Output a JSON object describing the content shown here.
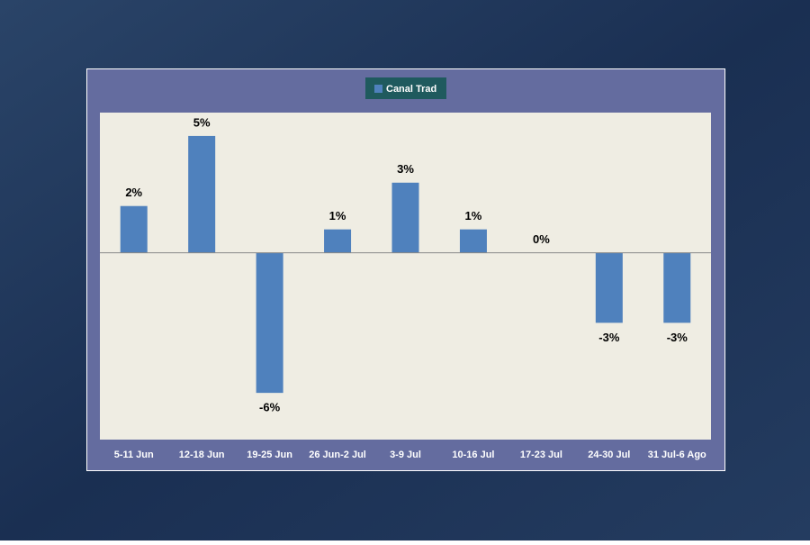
{
  "chart_data": {
    "type": "bar",
    "categories": [
      "5-11 Jun",
      "12-18 Jun",
      "19-25 Jun",
      "26 Jun-2 Jul",
      "3-9 Jul",
      "10-16 Jul",
      "17-23 Jul",
      "24-30 Jul",
      "31 Jul-6 Ago"
    ],
    "series": [
      {
        "name": "Canal Trad",
        "color": "#4f81bd",
        "values": [
          2,
          5,
          -6,
          1,
          3,
          1,
          0,
          -3,
          -3
        ],
        "value_labels": [
          "2%",
          "5%",
          "-6%",
          "1%",
          "3%",
          "1%",
          "0%",
          "-3%",
          "-3%"
        ]
      }
    ],
    "ylim": [
      -8,
      6
    ],
    "legend": "top"
  }
}
